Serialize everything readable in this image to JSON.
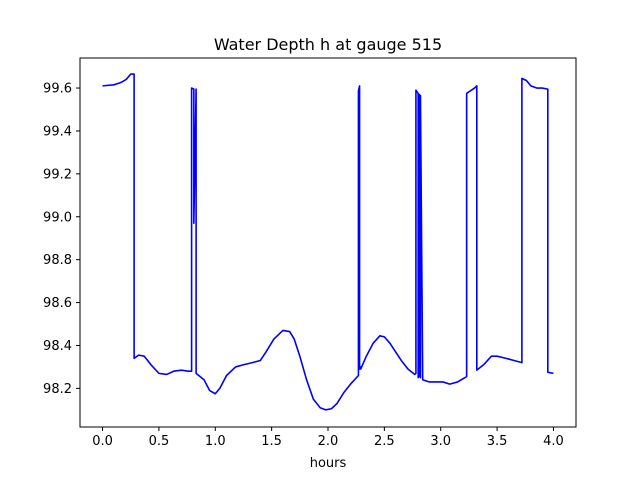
{
  "chart_data": {
    "type": "line",
    "title": "Water Depth h at gauge 515",
    "xlabel": "hours",
    "ylabel": "",
    "xlim": [
      -0.2,
      4.2
    ],
    "ylim": [
      98.02,
      99.74
    ],
    "xticks": [
      0.0,
      0.5,
      1.0,
      1.5,
      2.0,
      2.5,
      3.0,
      3.5,
      4.0
    ],
    "xtick_labels": [
      "0.0",
      "0.5",
      "1.0",
      "1.5",
      "2.0",
      "2.5",
      "3.0",
      "3.5",
      "4.0"
    ],
    "yticks": [
      98.2,
      98.4,
      98.6,
      98.8,
      99.0,
      99.2,
      99.4,
      99.6
    ],
    "ytick_labels": [
      "98.2",
      "98.4",
      "98.6",
      "98.8",
      "99.0",
      "99.2",
      "99.4",
      "99.6"
    ],
    "grid": false,
    "series": [
      {
        "color": "#0000ff",
        "x": [
          0.0,
          0.1,
          0.16,
          0.21,
          0.25,
          0.28,
          0.28,
          0.32,
          0.37,
          0.43,
          0.5,
          0.57,
          0.63,
          0.7,
          0.76,
          0.79,
          0.79,
          0.81,
          0.81,
          0.83,
          0.83,
          0.9,
          0.95,
          1.0,
          1.04,
          1.1,
          1.18,
          1.25,
          1.33,
          1.4,
          1.45,
          1.52,
          1.6,
          1.66,
          1.7,
          1.75,
          1.81,
          1.87,
          1.93,
          1.98,
          2.03,
          2.08,
          2.14,
          2.2,
          2.27,
          2.27,
          2.28,
          2.28,
          2.29,
          2.29,
          2.34,
          2.4,
          2.46,
          2.5,
          2.55,
          2.6,
          2.65,
          2.71,
          2.77,
          2.78,
          2.78,
          2.8,
          2.8,
          2.8,
          2.81,
          2.81,
          2.82,
          2.82,
          2.84,
          2.84,
          2.9,
          2.96,
          3.02,
          3.08,
          3.15,
          3.23,
          3.23,
          3.3,
          3.32,
          3.32,
          3.38,
          3.45,
          3.5,
          3.58,
          3.65,
          3.72,
          3.72,
          3.76,
          3.8,
          3.85,
          3.9,
          3.95,
          3.95,
          4.0
        ],
        "y": [
          99.61,
          99.615,
          99.625,
          99.64,
          99.665,
          99.665,
          98.34,
          98.355,
          98.35,
          98.31,
          98.27,
          98.265,
          98.28,
          98.285,
          98.28,
          98.28,
          99.6,
          99.595,
          98.97,
          99.595,
          98.27,
          98.24,
          98.19,
          98.175,
          98.2,
          98.26,
          98.3,
          98.31,
          98.32,
          98.33,
          98.37,
          98.43,
          98.47,
          98.465,
          98.43,
          98.35,
          98.24,
          98.15,
          98.11,
          98.1,
          98.105,
          98.13,
          98.18,
          98.22,
          98.26,
          99.585,
          99.61,
          98.29,
          98.3,
          98.29,
          98.35,
          98.41,
          98.445,
          98.44,
          98.41,
          98.37,
          98.33,
          98.29,
          98.265,
          98.27,
          99.59,
          99.575,
          98.25,
          99.565,
          99.57,
          98.26,
          98.25,
          99.565,
          98.25,
          98.24,
          98.23,
          98.23,
          98.23,
          98.22,
          98.23,
          98.255,
          99.575,
          99.6,
          99.61,
          98.285,
          98.31,
          98.35,
          98.35,
          98.34,
          98.33,
          98.32,
          99.645,
          99.635,
          99.61,
          99.6,
          99.6,
          99.595,
          98.275,
          98.27
        ]
      }
    ]
  }
}
